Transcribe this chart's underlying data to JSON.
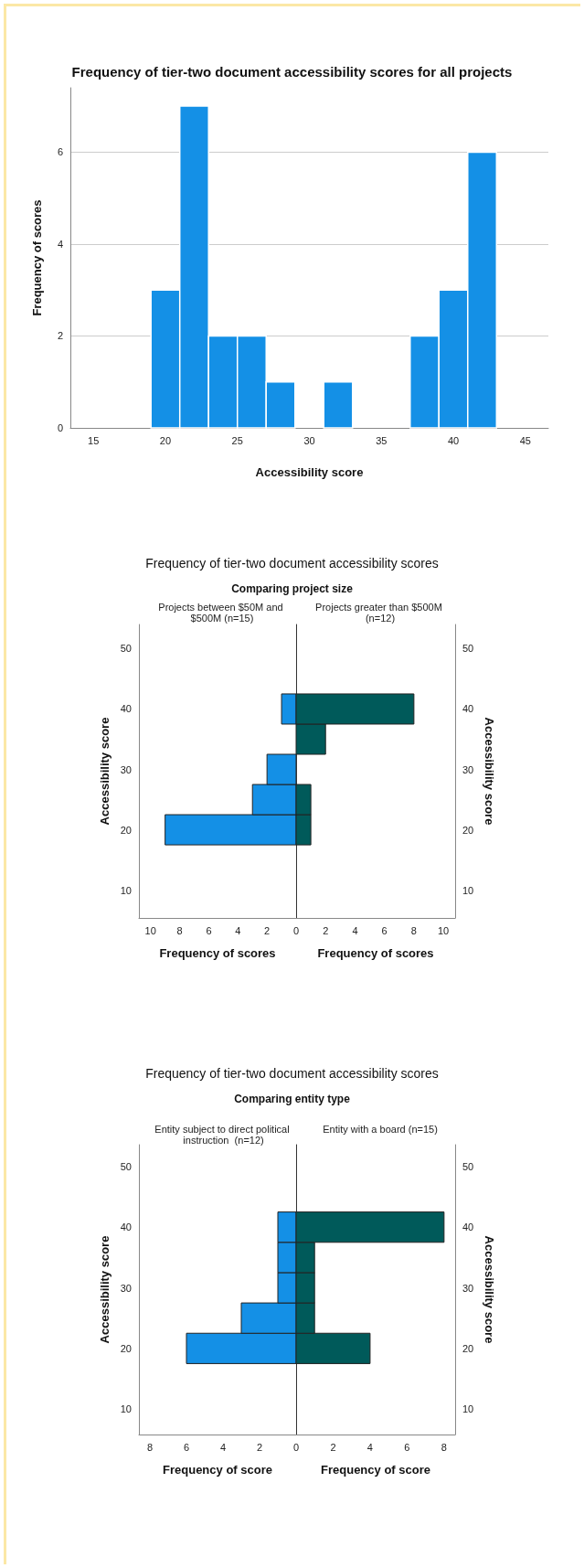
{
  "chart_data": [
    {
      "type": "histogram",
      "title": "Frequency of tier-two document accessibility scores for all projects",
      "xlabel": "Accessibility score",
      "ylabel": "Frequency of scores",
      "bins": [
        19,
        21,
        23,
        25,
        27,
        29,
        31,
        33,
        35,
        37,
        39,
        41,
        43
      ],
      "values": [
        3,
        7,
        2,
        2,
        1,
        0,
        1,
        0,
        0,
        2,
        3,
        6
      ],
      "color": "#1490e6",
      "xlim": [
        13.4,
        46.6
      ],
      "xticks": [
        15,
        20,
        25,
        30,
        35,
        40,
        45
      ],
      "ylim": [
        0,
        7.4
      ],
      "yticks": [
        0,
        2,
        4,
        6
      ],
      "grid": "y"
    },
    {
      "type": "histogram",
      "orientation": "horizontal",
      "title": "Frequency of tier-two document accessibility scores",
      "subtitle": "Comparing project size",
      "xlabel": "Frequency of scores",
      "ylabel": "Accessibility score",
      "bins": [
        17.5,
        22.5,
        27.5,
        32.5,
        37.5,
        42.5
      ],
      "series": [
        {
          "name": "Projects between $50M and $500M (n=15)",
          "color": "#1490e6",
          "values": [
            9,
            3,
            2,
            0,
            1
          ]
        }
      ],
      "xlim": [
        10.8,
        0
      ],
      "xticks": [
        2,
        4,
        6,
        8,
        10
      ],
      "ylim": [
        5.4,
        54
      ],
      "yticks": [
        10,
        20,
        30,
        40,
        50
      ]
    },
    {
      "type": "histogram",
      "orientation": "horizontal",
      "xlabel": "Frequency of scores",
      "ylabel": "Accessibility score",
      "bins": [
        17.5,
        22.5,
        27.5,
        32.5,
        37.5,
        42.5
      ],
      "series": [
        {
          "name": "Projects greater than $500M (n=12)",
          "color": "#005a5a",
          "values": [
            1,
            1,
            0,
            2,
            8
          ]
        }
      ],
      "xlim": [
        0,
        10.8
      ],
      "xticks": [
        0,
        2,
        4,
        6,
        8,
        10
      ],
      "ylim": [
        5.4,
        54
      ],
      "yticks": [
        10,
        20,
        30,
        40,
        50
      ]
    },
    {
      "type": "histogram",
      "orientation": "horizontal",
      "title": "Frequency of tier-two document accessibility scores",
      "subtitle": "Comparing entity type",
      "xlabel": "Frequency of score",
      "ylabel": "Accessibility score",
      "bins": [
        17.5,
        22.5,
        27.5,
        32.5,
        37.5,
        42.5
      ],
      "series": [
        {
          "name": "Entity subject to direct political instruction  (n=12)",
          "color": "#1490e6",
          "values": [
            6,
            3,
            1,
            1,
            1
          ]
        }
      ],
      "xlim": [
        8.6,
        0
      ],
      "xticks": [
        2,
        4,
        6,
        8
      ],
      "ylim": [
        5.8,
        53.6
      ],
      "yticks": [
        10,
        20,
        30,
        40,
        50
      ]
    },
    {
      "type": "histogram",
      "orientation": "horizontal",
      "xlabel": "Frequency of score",
      "ylabel": "Accessibility score",
      "bins": [
        17.5,
        22.5,
        27.5,
        32.5,
        37.5,
        42.5
      ],
      "series": [
        {
          "name": "Entity with a board (n=15)",
          "color": "#005a5a",
          "values": [
            4,
            1,
            1,
            1,
            8
          ]
        }
      ],
      "xlim": [
        0,
        8.6
      ],
      "xticks": [
        0,
        2,
        4,
        6,
        8
      ],
      "ylim": [
        5.8,
        53.6
      ],
      "yticks": [
        10,
        20,
        30,
        40,
        50
      ]
    }
  ]
}
